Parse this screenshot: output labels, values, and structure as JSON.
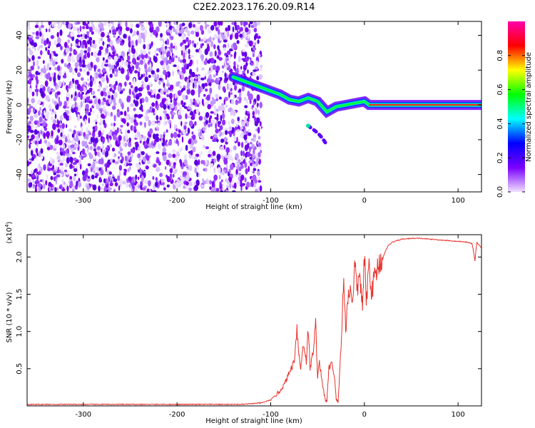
{
  "title": "C2E2.2023.176.20.09.R14",
  "chart_data": [
    {
      "type": "heatmap",
      "xlabel": "Height of straight line (km)",
      "ylabel": "Frequency (Hz)",
      "xlim": [
        -360,
        125
      ],
      "ylim": [
        -50,
        48
      ],
      "xticks": [
        -300,
        -200,
        -100,
        0,
        100
      ],
      "yticks": [
        -40,
        -20,
        0,
        20,
        40
      ],
      "noise_region_x": [
        -360,
        -110
      ],
      "carrier": {
        "x": [
          -140,
          -120,
          -100,
          -90,
          -80,
          -70,
          -60,
          -50,
          -40,
          -30,
          -20,
          -10,
          0,
          5,
          125
        ],
        "freq": [
          16,
          12,
          8,
          6,
          3,
          2,
          4,
          2,
          -4,
          -1,
          0,
          1,
          2,
          0,
          0
        ]
      },
      "secondary_branch": {
        "x": [
          -60,
          -55,
          -50,
          -45,
          -40
        ],
        "freq": [
          -12,
          -14,
          -16,
          -19,
          -23
        ]
      },
      "colorbar": {
        "label": "Normalized spectral amplitude",
        "ticks": [
          0.0,
          0.2,
          0.4,
          0.6,
          0.8
        ],
        "range": [
          0,
          1
        ],
        "colors": [
          "#f0e0ff",
          "#7a00ff",
          "#0000ff",
          "#00ffff",
          "#00ff00",
          "#ffff00",
          "#ff0000",
          "#ff00aa"
        ]
      }
    },
    {
      "type": "line",
      "xlabel": "Height of straight line (km)",
      "ylabel": "SNR (10 * v/v)",
      "exponent_label": "(x10",
      "exponent_power": "4",
      "exponent_close": ")",
      "xlim": [
        -360,
        125
      ],
      "ylim": [
        0,
        2.3
      ],
      "xticks": [
        -300,
        -200,
        -100,
        0,
        100
      ],
      "yticks": [
        0.5,
        1.0,
        1.5,
        2.0
      ],
      "ytick_labels": [
        "0.5",
        "1.0",
        "1.5",
        "2.0"
      ],
      "color": "#e8302a",
      "series": {
        "x": [
          -360,
          -200,
          -130,
          -110,
          -100,
          -90,
          -85,
          -80,
          -75,
          -72,
          -70,
          -68,
          -65,
          -62,
          -60,
          -58,
          -55,
          -52,
          -50,
          -48,
          -45,
          -42,
          -40,
          -38,
          -35,
          -32,
          -30,
          -28,
          -25,
          -22,
          -20,
          -18,
          -15,
          -12,
          -10,
          -8,
          -5,
          -2,
          0,
          2,
          5,
          8,
          10,
          15,
          20,
          25,
          30,
          40,
          50,
          60,
          70,
          80,
          90,
          100,
          110,
          115,
          118,
          120,
          125
        ],
        "y": [
          0.02,
          0.02,
          0.02,
          0.04,
          0.08,
          0.2,
          0.3,
          0.45,
          0.6,
          1.05,
          0.7,
          0.5,
          0.85,
          0.6,
          1.05,
          0.5,
          0.7,
          1.1,
          0.4,
          0.6,
          0.3,
          0.1,
          0.05,
          0.5,
          0.6,
          0.4,
          0.08,
          0.05,
          0.8,
          1.7,
          1.0,
          1.4,
          1.6,
          1.4,
          2.0,
          1.5,
          1.8,
          1.3,
          2.0,
          1.4,
          1.9,
          1.5,
          1.7,
          1.9,
          2.0,
          2.15,
          2.2,
          2.24,
          2.25,
          2.25,
          2.24,
          2.23,
          2.22,
          2.21,
          2.2,
          2.18,
          1.95,
          2.2,
          2.12
        ]
      }
    }
  ]
}
